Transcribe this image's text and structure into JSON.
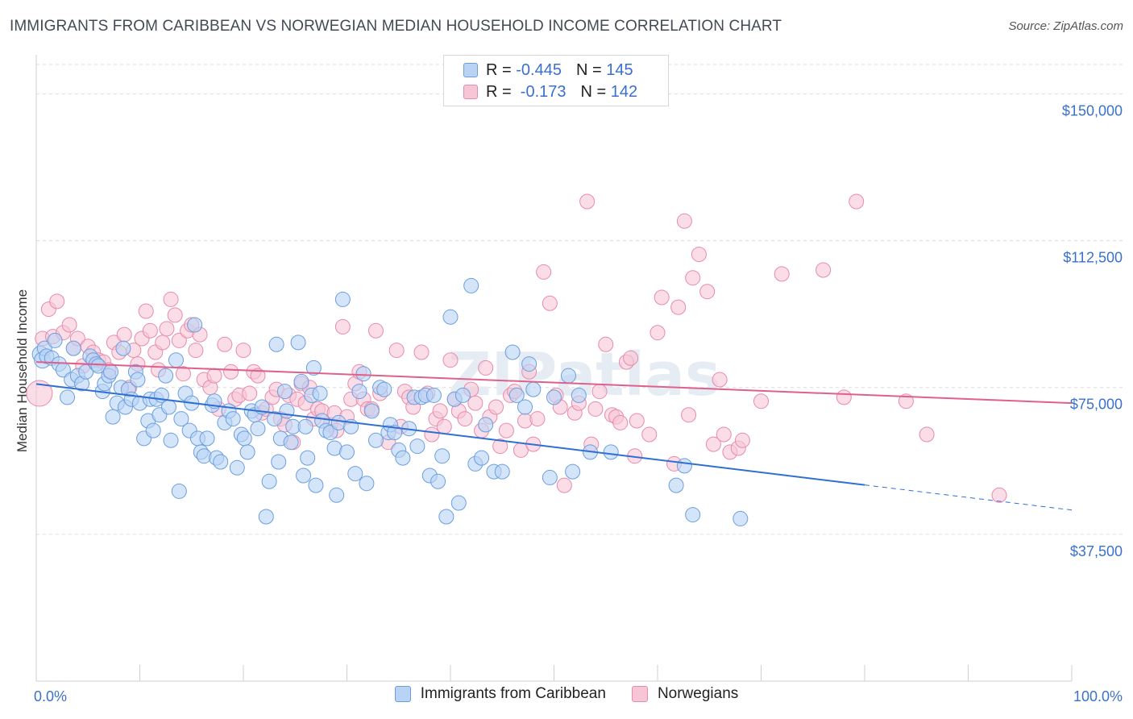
{
  "header": {
    "title": "IMMIGRANTS FROM CARIBBEAN VS NORWEGIAN MEDIAN HOUSEHOLD INCOME CORRELATION CHART",
    "source": "Source: ZipAtlas.com"
  },
  "legend_top": {
    "rows": [
      {
        "r_label": "R = ",
        "r_value": "-0.445",
        "n_label": "N = ",
        "n_value": "145"
      },
      {
        "r_label": "R = ",
        "r_value": " -0.173",
        "n_label": "N = ",
        "n_value": "142"
      }
    ]
  },
  "colors": {
    "blue_fill": "#b9d3f5",
    "blue_stroke": "#6a9ee0",
    "blue_line": "#2f6fd1",
    "pink_fill": "#f7c6d6",
    "pink_stroke": "#e88aab",
    "pink_line": "#e0608c",
    "tick_label": "#3a72c9",
    "grid": "#dcdcdc"
  },
  "chart_data": {
    "type": "scatter",
    "title": "IMMIGRANTS FROM CARIBBEAN VS NORWEGIAN MEDIAN HOUSEHOLD INCOME CORRELATION CHART",
    "xlabel": "",
    "ylabel": "Median Household Income",
    "xlim": [
      0,
      100
    ],
    "ylim": [
      0,
      157500
    ],
    "x_tick_labels": [
      {
        "value": 0,
        "label": "0.0%"
      },
      {
        "value": 100,
        "label": "100.0%"
      }
    ],
    "y_ticks": [
      {
        "value": 37500,
        "label": "$37,500"
      },
      {
        "value": 75000,
        "label": "$75,000"
      },
      {
        "value": 112500,
        "label": "$112,500"
      },
      {
        "value": 150000,
        "label": "$150,000"
      }
    ],
    "grid": "horizontal dashed",
    "legend": "bottom-center",
    "watermark": "ZIPatlas",
    "series": [
      {
        "name": "Immigrants from Caribbean",
        "color": "#b9d3f5",
        "r": -0.445,
        "n": 145,
        "trend": {
          "x0": 0,
          "y0": 75900,
          "x1": 80,
          "y1": 50100,
          "dashed_to_x": 100,
          "dashed_to_y": 43700
        },
        "points": [
          [
            0.4,
            83500
          ],
          [
            0.6,
            82000
          ],
          [
            0.8,
            85000
          ],
          [
            1,
            83000
          ],
          [
            1.5,
            82500
          ],
          [
            1.8,
            87000
          ],
          [
            2.2,
            81000
          ],
          [
            2.6,
            79500
          ],
          [
            3,
            72500
          ],
          [
            3.4,
            77000
          ],
          [
            3.6,
            85000
          ],
          [
            4,
            78000
          ],
          [
            4.4,
            76000
          ],
          [
            4.8,
            79000
          ],
          [
            5.2,
            83000
          ],
          [
            5.5,
            82000
          ],
          [
            5.8,
            81000
          ],
          [
            6,
            80500
          ],
          [
            6.4,
            74000
          ],
          [
            6.6,
            76000
          ],
          [
            7,
            78000
          ],
          [
            7.2,
            79000
          ],
          [
            7.4,
            67500
          ],
          [
            7.8,
            71000
          ],
          [
            8.2,
            75000
          ],
          [
            8.4,
            85000
          ],
          [
            8.6,
            70000
          ],
          [
            8.9,
            74500
          ],
          [
            9.2,
            72000
          ],
          [
            9.6,
            79000
          ],
          [
            9.8,
            77000
          ],
          [
            10,
            71000
          ],
          [
            10.4,
            62000
          ],
          [
            10.8,
            66500
          ],
          [
            11,
            72000
          ],
          [
            11.3,
            64000
          ],
          [
            11.6,
            72000
          ],
          [
            11.9,
            68000
          ],
          [
            12.1,
            73000
          ],
          [
            12.5,
            78000
          ],
          [
            12.8,
            70000
          ],
          [
            13,
            61500
          ],
          [
            13.5,
            82000
          ],
          [
            13.8,
            48500
          ],
          [
            14,
            67000
          ],
          [
            14.4,
            73500
          ],
          [
            14.8,
            64000
          ],
          [
            15,
            71000
          ],
          [
            15.3,
            91000
          ],
          [
            15.6,
            62000
          ],
          [
            15.9,
            58500
          ],
          [
            16.2,
            57500
          ],
          [
            16.5,
            62000
          ],
          [
            17,
            70500
          ],
          [
            17.2,
            71500
          ],
          [
            17.4,
            57000
          ],
          [
            17.8,
            56000
          ],
          [
            18.2,
            66000
          ],
          [
            18.6,
            69000
          ],
          [
            19,
            67000
          ],
          [
            19.4,
            54500
          ],
          [
            19.8,
            63000
          ],
          [
            20.1,
            62000
          ],
          [
            20.4,
            58500
          ],
          [
            20.8,
            69000
          ],
          [
            21.1,
            68000
          ],
          [
            21.4,
            64500
          ],
          [
            21.8,
            70000
          ],
          [
            22.2,
            42000
          ],
          [
            22.5,
            51000
          ],
          [
            23,
            67000
          ],
          [
            23.2,
            86000
          ],
          [
            23.4,
            56000
          ],
          [
            23.6,
            62000
          ],
          [
            24,
            74000
          ],
          [
            24.2,
            69000
          ],
          [
            24.6,
            61000
          ],
          [
            24.8,
            65000
          ],
          [
            25.3,
            86500
          ],
          [
            25.6,
            76500
          ],
          [
            25.8,
            52500
          ],
          [
            26,
            65000
          ],
          [
            26.2,
            57000
          ],
          [
            26.6,
            73000
          ],
          [
            26.8,
            80000
          ],
          [
            27,
            50000
          ],
          [
            27.4,
            73500
          ],
          [
            27.6,
            66500
          ],
          [
            28,
            64000
          ],
          [
            28.4,
            63500
          ],
          [
            28.8,
            59500
          ],
          [
            29,
            47500
          ],
          [
            29.2,
            66000
          ],
          [
            29.6,
            97500
          ],
          [
            30,
            58500
          ],
          [
            30.4,
            65000
          ],
          [
            30.8,
            53000
          ],
          [
            31.2,
            74000
          ],
          [
            31.6,
            78500
          ],
          [
            31.9,
            50500
          ],
          [
            32.4,
            69000
          ],
          [
            32.8,
            61500
          ],
          [
            33.2,
            75000
          ],
          [
            33.6,
            74500
          ],
          [
            34,
            63500
          ],
          [
            34.2,
            65500
          ],
          [
            34.6,
            63500
          ],
          [
            35,
            59000
          ],
          [
            35.4,
            57000
          ],
          [
            36,
            64500
          ],
          [
            36.5,
            72500
          ],
          [
            36.8,
            60000
          ],
          [
            37.2,
            72500
          ],
          [
            37.6,
            73000
          ],
          [
            38,
            52500
          ],
          [
            38.4,
            73000
          ],
          [
            38.8,
            51000
          ],
          [
            39.2,
            57500
          ],
          [
            39.6,
            42000
          ],
          [
            40,
            93000
          ],
          [
            40.4,
            72000
          ],
          [
            40.8,
            45500
          ],
          [
            41.2,
            73000
          ],
          [
            42,
            101000
          ],
          [
            42.4,
            55500
          ],
          [
            43,
            57000
          ],
          [
            43.4,
            65500
          ],
          [
            44.2,
            53500
          ],
          [
            45,
            53500
          ],
          [
            46,
            84000
          ],
          [
            46.4,
            73000
          ],
          [
            47.2,
            70000
          ],
          [
            47.6,
            81000
          ],
          [
            48,
            74500
          ],
          [
            49.6,
            52000
          ],
          [
            50,
            72500
          ],
          [
            51.4,
            78000
          ],
          [
            51.8,
            53500
          ],
          [
            52.4,
            73000
          ],
          [
            53.5,
            58500
          ],
          [
            55.5,
            58500
          ],
          [
            61.8,
            50000
          ],
          [
            62.6,
            55000
          ],
          [
            63.4,
            42500
          ],
          [
            68,
            41500
          ]
        ]
      },
      {
        "name": "Norwegians",
        "color": "#f7c6d6",
        "r": -0.173,
        "n": 142,
        "trend": {
          "x0": 0,
          "y0": 81500,
          "x1": 100,
          "y1": 71000
        },
        "points": [
          [
            0.3,
            73500
          ],
          [
            0.6,
            87500
          ],
          [
            1.2,
            95000
          ],
          [
            1.6,
            88000
          ],
          [
            2,
            97000
          ],
          [
            2.6,
            89000
          ],
          [
            3.2,
            91000
          ],
          [
            3.6,
            85000
          ],
          [
            4,
            87500
          ],
          [
            4.5,
            80500
          ],
          [
            5,
            85500
          ],
          [
            5.5,
            84000
          ],
          [
            6,
            82000
          ],
          [
            6.5,
            81500
          ],
          [
            7,
            79500
          ],
          [
            7.5,
            86500
          ],
          [
            8,
            84000
          ],
          [
            8.5,
            88500
          ],
          [
            9,
            75000
          ],
          [
            9.4,
            84500
          ],
          [
            9.8,
            81000
          ],
          [
            10.2,
            87500
          ],
          [
            10.6,
            94500
          ],
          [
            11,
            89500
          ],
          [
            11.5,
            84000
          ],
          [
            11.8,
            79500
          ],
          [
            12.2,
            86500
          ],
          [
            12.6,
            90000
          ],
          [
            13,
            97500
          ],
          [
            13.4,
            93500
          ],
          [
            13.8,
            87000
          ],
          [
            14.2,
            78500
          ],
          [
            14.6,
            89500
          ],
          [
            15,
            91000
          ],
          [
            15.4,
            84500
          ],
          [
            15.8,
            88500
          ],
          [
            16.2,
            77000
          ],
          [
            16.8,
            75000
          ],
          [
            17.2,
            78000
          ],
          [
            17.6,
            69500
          ],
          [
            18.2,
            86000
          ],
          [
            18.8,
            79000
          ],
          [
            19.2,
            72000
          ],
          [
            19.6,
            73000
          ],
          [
            20,
            84500
          ],
          [
            20.6,
            73500
          ],
          [
            21,
            79000
          ],
          [
            21.4,
            78000
          ],
          [
            21.8,
            68500
          ],
          [
            22.2,
            69500
          ],
          [
            22.8,
            72500
          ],
          [
            23.2,
            74500
          ],
          [
            23.6,
            67000
          ],
          [
            24,
            65500
          ],
          [
            24.4,
            73000
          ],
          [
            24.8,
            61000
          ],
          [
            25.2,
            72000
          ],
          [
            25.6,
            76000
          ],
          [
            26,
            71000
          ],
          [
            26.4,
            75000
          ],
          [
            26.8,
            67000
          ],
          [
            27.2,
            69500
          ],
          [
            27.6,
            69000
          ],
          [
            28.4,
            65500
          ],
          [
            28.8,
            68500
          ],
          [
            29,
            64000
          ],
          [
            29.6,
            90500
          ],
          [
            30,
            67500
          ],
          [
            30.4,
            72000
          ],
          [
            30.8,
            76000
          ],
          [
            31.2,
            79000
          ],
          [
            31.6,
            72000
          ],
          [
            32,
            69500
          ],
          [
            32.4,
            69500
          ],
          [
            32.8,
            89500
          ],
          [
            33.2,
            73500
          ],
          [
            34,
            61000
          ],
          [
            34.8,
            84500
          ],
          [
            35.2,
            65000
          ],
          [
            35.6,
            74000
          ],
          [
            36,
            72500
          ],
          [
            36.4,
            70000
          ],
          [
            37.2,
            84000
          ],
          [
            37.8,
            73500
          ],
          [
            38.2,
            63000
          ],
          [
            38.6,
            67000
          ],
          [
            39,
            69000
          ],
          [
            39.4,
            65000
          ],
          [
            40,
            82000
          ],
          [
            40.4,
            72000
          ],
          [
            40.8,
            69000
          ],
          [
            41.4,
            67000
          ],
          [
            42,
            74500
          ],
          [
            42.4,
            71000
          ],
          [
            43,
            64000
          ],
          [
            43.4,
            80000
          ],
          [
            43.8,
            67500
          ],
          [
            44.4,
            70000
          ],
          [
            44.8,
            60000
          ],
          [
            45.4,
            64000
          ],
          [
            45.8,
            73000
          ],
          [
            46.2,
            74000
          ],
          [
            46.8,
            59000
          ],
          [
            47.2,
            66500
          ],
          [
            47.6,
            79000
          ],
          [
            48,
            60500
          ],
          [
            48.4,
            67000
          ],
          [
            49,
            104500
          ],
          [
            49.6,
            96500
          ],
          [
            50.2,
            73000
          ],
          [
            50.6,
            70000
          ],
          [
            51,
            50000
          ],
          [
            52,
            68500
          ],
          [
            52.4,
            71000
          ],
          [
            53.2,
            122500
          ],
          [
            53.6,
            60500
          ],
          [
            54,
            69500
          ],
          [
            54.4,
            74000
          ],
          [
            55,
            86000
          ],
          [
            55.6,
            68000
          ],
          [
            56,
            67500
          ],
          [
            56.4,
            66000
          ],
          [
            57,
            81500
          ],
          [
            57.4,
            82500
          ],
          [
            57.8,
            57500
          ],
          [
            58,
            66500
          ],
          [
            59.2,
            63000
          ],
          [
            60,
            89000
          ],
          [
            60.4,
            98000
          ],
          [
            61.6,
            55500
          ],
          [
            62,
            95500
          ],
          [
            62.6,
            117500
          ],
          [
            63,
            68000
          ],
          [
            63.4,
            103000
          ],
          [
            64,
            109000
          ],
          [
            64.8,
            99500
          ],
          [
            65.4,
            60500
          ],
          [
            66,
            77000
          ],
          [
            66.4,
            63000
          ],
          [
            67,
            58500
          ],
          [
            67.8,
            59500
          ],
          [
            68.2,
            61500
          ],
          [
            70,
            71500
          ],
          [
            72,
            104000
          ],
          [
            76,
            105000
          ],
          [
            78,
            72500
          ],
          [
            79.2,
            122500
          ],
          [
            84,
            71500
          ],
          [
            86,
            63000
          ],
          [
            93,
            47500
          ]
        ]
      }
    ]
  }
}
